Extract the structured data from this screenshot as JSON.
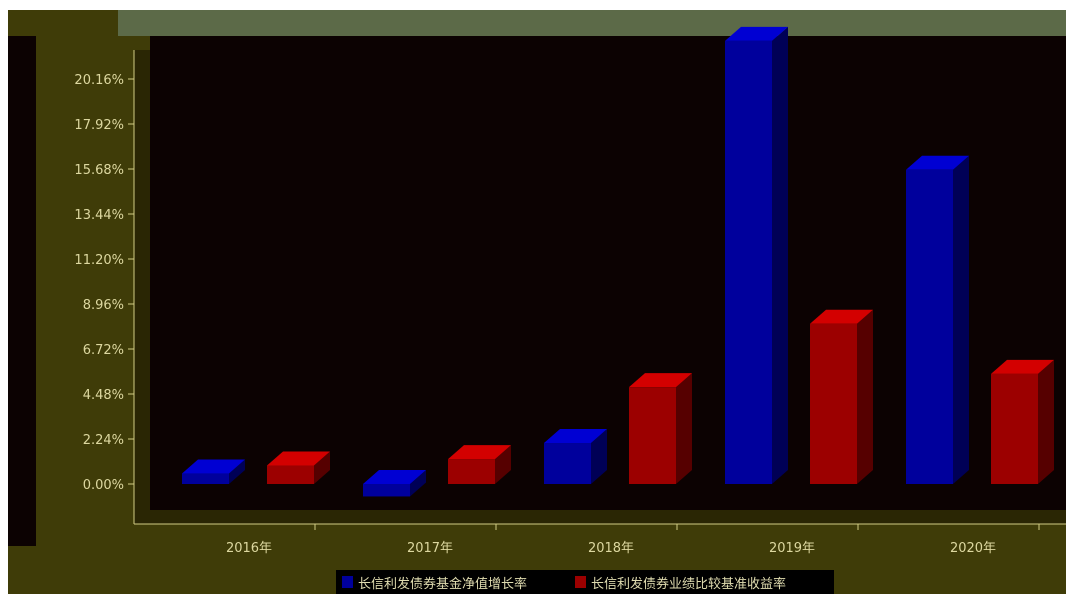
{
  "chart_data": {
    "type": "bar",
    "title": "",
    "xlabel": "",
    "ylabel": "",
    "categories": [
      "2016年",
      "2017年",
      "2018年",
      "2019年",
      "2020年"
    ],
    "yticks": [
      "0.00%",
      "2.24%",
      "4.48%",
      "6.72%",
      "8.96%",
      "11.20%",
      "13.44%",
      "15.68%",
      "17.92%",
      "20.16%"
    ],
    "ylim": [
      -1.5,
      22.4
    ],
    "grid": false,
    "legend_position": "bottom",
    "series": [
      {
        "name": "长信利发债券基金净值增长率",
        "color": "#00009c",
        "values": [
          0.52,
          -0.62,
          2.04,
          22.06,
          15.64
        ]
      },
      {
        "name": "长信利发债券业绩比较基准收益率",
        "color": "#9c0000",
        "values": [
          0.92,
          1.24,
          4.82,
          7.98,
          5.48
        ]
      }
    ]
  },
  "colors": {
    "frame": "#3f3c08",
    "plot_background": "#0c0202",
    "wall": "#2a2604",
    "axis": "#d2cc84",
    "text": "#ddd8a0",
    "legend_background": "#000000"
  }
}
